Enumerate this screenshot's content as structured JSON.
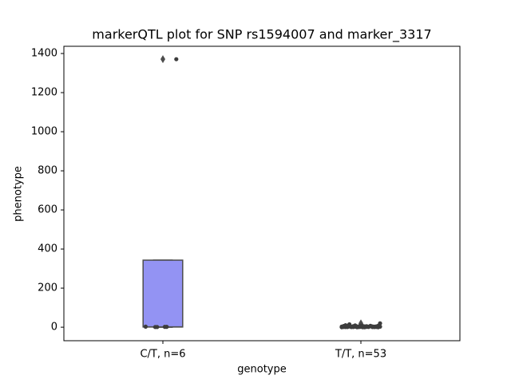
{
  "chart_data": {
    "type": "box",
    "title": "markerQTL plot for SNP rs1594007 and marker_3317",
    "x_label": "genotype",
    "y_label": "phenotype",
    "categories": [
      "C/T, n=6",
      "T/T, n=53"
    ],
    "colors": [
      "#9393f3",
      "#f3a37a"
    ],
    "point_color": "#3d3d3d",
    "boxes": [
      {
        "whislo": 0,
        "q1": 1,
        "med": 2,
        "q3": 343,
        "whishi": 343,
        "fliers": [
          1371
        ]
      },
      {
        "whislo": 0,
        "q1": 1,
        "med": 3,
        "q3": 5,
        "whishi": 10,
        "fliers": [
          15,
          20
        ]
      }
    ],
    "points": [
      [
        2,
        1,
        3,
        1371,
        2,
        1
      ],
      [
        0,
        1,
        2,
        3,
        4,
        5,
        1,
        2,
        3,
        0,
        6,
        7,
        2,
        1,
        4,
        3,
        5,
        8,
        2,
        0,
        1,
        3,
        4,
        6,
        2,
        1,
        9,
        3,
        2,
        5,
        4,
        1,
        0,
        2,
        3,
        15,
        20,
        7,
        2,
        1,
        3,
        4,
        6,
        5,
        2,
        1,
        0,
        3,
        10,
        4,
        2,
        1,
        3
      ]
    ],
    "ylim": [
      -69,
      1437
    ],
    "yticks": [
      0,
      200,
      400,
      600,
      800,
      1000,
      1200,
      1400
    ]
  }
}
